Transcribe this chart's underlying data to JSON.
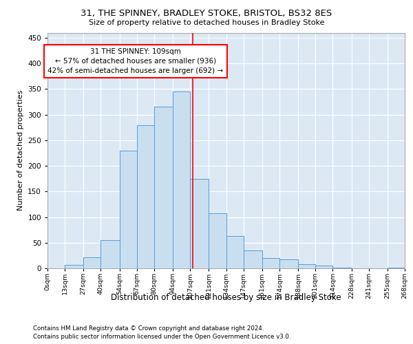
{
  "title1": "31, THE SPINNEY, BRADLEY STOKE, BRISTOL, BS32 8ES",
  "title2": "Size of property relative to detached houses in Bradley Stoke",
  "xlabel": "Distribution of detached houses by size in Bradley Stoke",
  "ylabel": "Number of detached properties",
  "footer1": "Contains HM Land Registry data © Crown copyright and database right 2024.",
  "footer2": "Contains public sector information licensed under the Open Government Licence v3.0.",
  "annotation_line1": "31 THE SPINNEY: 109sqm",
  "annotation_line2": "← 57% of detached houses are smaller (936)",
  "annotation_line3": "42% of semi-detached houses are larger (692) →",
  "bar_color": "#c9dff0",
  "bar_edge_color": "#5b9bd5",
  "background_color": "#dce9f5",
  "red_line_x": 109,
  "bin_edges": [
    0,
    13,
    27,
    40,
    54,
    67,
    80,
    94,
    107,
    121,
    134,
    147,
    161,
    174,
    188,
    201,
    214,
    228,
    241,
    255,
    268
  ],
  "bar_heights": [
    0,
    7,
    22,
    55,
    230,
    280,
    315,
    345,
    175,
    108,
    63,
    35,
    20,
    18,
    8,
    5,
    2,
    0,
    0,
    2
  ],
  "ylim": [
    0,
    460
  ],
  "yticks": [
    0,
    50,
    100,
    150,
    200,
    250,
    300,
    350,
    400,
    450
  ]
}
